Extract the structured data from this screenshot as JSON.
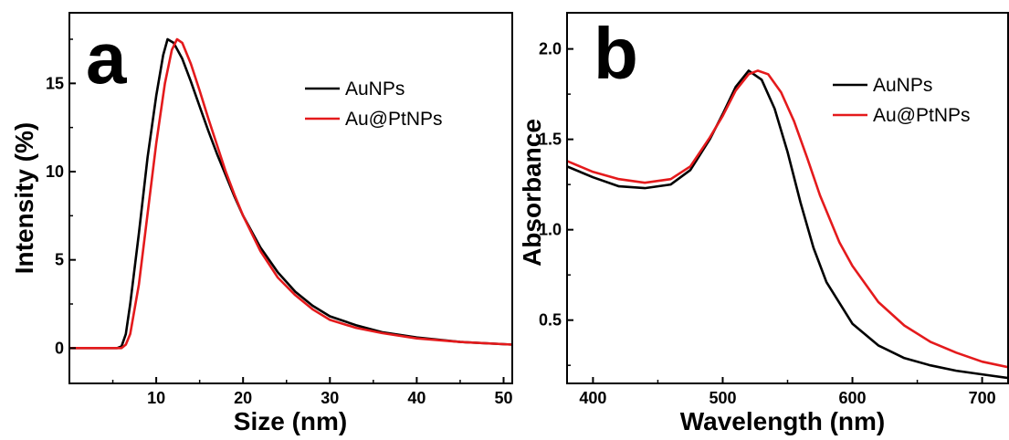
{
  "chart_data": [
    {
      "type": "line",
      "panel_label": "a",
      "xlabel": "Size (nm)",
      "ylabel": "Intensity (%)",
      "xlim": [
        0,
        51
      ],
      "ylim": [
        -2,
        19
      ],
      "xticks": [
        10,
        20,
        30,
        40,
        50
      ],
      "yticks": [
        0,
        5,
        10,
        15
      ],
      "legend_position": "top-right",
      "series": [
        {
          "name": "AuNPs",
          "color": "#000000",
          "points": [
            [
              0,
              0
            ],
            [
              5.5,
              0
            ],
            [
              6,
              0.1
            ],
            [
              6.5,
              0.8
            ],
            [
              7,
              2.5
            ],
            [
              8,
              6.5
            ],
            [
              9,
              10.8
            ],
            [
              10,
              14.3
            ],
            [
              10.8,
              16.6
            ],
            [
              11.3,
              17.5
            ],
            [
              12,
              17.3
            ],
            [
              13,
              16.4
            ],
            [
              14,
              15.1
            ],
            [
              15,
              13.7
            ],
            [
              16,
              12.3
            ],
            [
              17,
              11.0
            ],
            [
              18,
              9.8
            ],
            [
              19,
              8.6
            ],
            [
              20,
              7.5
            ],
            [
              22,
              5.7
            ],
            [
              24,
              4.3
            ],
            [
              26,
              3.2
            ],
            [
              28,
              2.4
            ],
            [
              30,
              1.8
            ],
            [
              33,
              1.3
            ],
            [
              36,
              0.9
            ],
            [
              40,
              0.6
            ],
            [
              45,
              0.35
            ],
            [
              51,
              0.2
            ]
          ]
        },
        {
          "name": "Au@PtNPs",
          "color": "#e41a1c",
          "points": [
            [
              0,
              0
            ],
            [
              6,
              0
            ],
            [
              6.5,
              0.2
            ],
            [
              7,
              0.8
            ],
            [
              8,
              3.6
            ],
            [
              9,
              7.6
            ],
            [
              10,
              11.6
            ],
            [
              11,
              15.0
            ],
            [
              11.8,
              16.9
            ],
            [
              12.4,
              17.5
            ],
            [
              13,
              17.3
            ],
            [
              14,
              16.1
            ],
            [
              15,
              14.6
            ],
            [
              16,
              13.0
            ],
            [
              17,
              11.5
            ],
            [
              18,
              10.0
            ],
            [
              19,
              8.7
            ],
            [
              20,
              7.5
            ],
            [
              22,
              5.5
            ],
            [
              24,
              4.0
            ],
            [
              26,
              3.0
            ],
            [
              28,
              2.2
            ],
            [
              30,
              1.6
            ],
            [
              33,
              1.15
            ],
            [
              36,
              0.85
            ],
            [
              40,
              0.55
            ],
            [
              45,
              0.35
            ],
            [
              51,
              0.2
            ]
          ]
        }
      ]
    },
    {
      "type": "line",
      "panel_label": "b",
      "xlabel": "Wavelength (nm)",
      "ylabel": "Absorbance",
      "xlim": [
        380,
        720
      ],
      "ylim": [
        0.15,
        2.2
      ],
      "xticks": [
        400,
        500,
        600,
        700
      ],
      "yticks": [
        0.5,
        1.0,
        1.5,
        2.0
      ],
      "ytick_labels": [
        "0.5",
        "1.0",
        "1.5",
        "2.0"
      ],
      "legend_position": "top-right",
      "series": [
        {
          "name": "AuNPs",
          "color": "#000000",
          "points": [
            [
              380,
              1.35
            ],
            [
              400,
              1.29
            ],
            [
              420,
              1.24
            ],
            [
              440,
              1.23
            ],
            [
              460,
              1.25
            ],
            [
              475,
              1.33
            ],
            [
              490,
              1.5
            ],
            [
              500,
              1.64
            ],
            [
              510,
              1.79
            ],
            [
              520,
              1.88
            ],
            [
              530,
              1.83
            ],
            [
              540,
              1.67
            ],
            [
              550,
              1.43
            ],
            [
              560,
              1.15
            ],
            [
              570,
              0.9
            ],
            [
              580,
              0.71
            ],
            [
              600,
              0.48
            ],
            [
              620,
              0.36
            ],
            [
              640,
              0.29
            ],
            [
              660,
              0.25
            ],
            [
              680,
              0.22
            ],
            [
              700,
              0.2
            ],
            [
              720,
              0.18
            ]
          ]
        },
        {
          "name": "Au@PtNPs",
          "color": "#e41a1c",
          "points": [
            [
              380,
              1.38
            ],
            [
              400,
              1.32
            ],
            [
              420,
              1.28
            ],
            [
              440,
              1.26
            ],
            [
              460,
              1.28
            ],
            [
              475,
              1.35
            ],
            [
              490,
              1.51
            ],
            [
              500,
              1.63
            ],
            [
              510,
              1.77
            ],
            [
              520,
              1.86
            ],
            [
              527,
              1.88
            ],
            [
              535,
              1.86
            ],
            [
              545,
              1.76
            ],
            [
              555,
              1.6
            ],
            [
              565,
              1.4
            ],
            [
              575,
              1.19
            ],
            [
              590,
              0.93
            ],
            [
              600,
              0.8
            ],
            [
              620,
              0.6
            ],
            [
              640,
              0.47
            ],
            [
              660,
              0.38
            ],
            [
              680,
              0.32
            ],
            [
              700,
              0.27
            ],
            [
              720,
              0.24
            ]
          ]
        }
      ]
    }
  ]
}
